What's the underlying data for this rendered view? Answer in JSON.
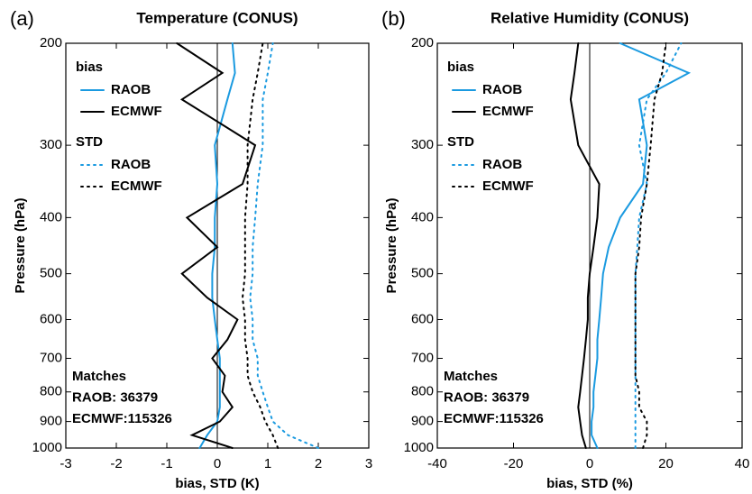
{
  "chart_data": [
    {
      "type": "line",
      "panel_label": "(a)",
      "title": "Temperature (CONUS)",
      "x_label": "bias, STD (K)",
      "y_label": "Pressure (hPa)",
      "xlim": [
        -3,
        3
      ],
      "xticks": [
        -3,
        -2,
        -1,
        0,
        1,
        2,
        3
      ],
      "ylim": [
        1000,
        200
      ],
      "yticks": [
        1000,
        900,
        800,
        700,
        600,
        500,
        400,
        300,
        200
      ],
      "log_y": true,
      "zero_line": 0,
      "y": [
        1000,
        950,
        900,
        850,
        800,
        750,
        700,
        650,
        600,
        550,
        500,
        450,
        400,
        350,
        300,
        250,
        225,
        200
      ],
      "legend_groups": [
        "bias",
        "STD"
      ],
      "series": [
        {
          "name": "RAOB",
          "group": 0,
          "color": "#1a9ae0",
          "dashed": false,
          "values": [
            -0.35,
            -0.2,
            0,
            0.05,
            0.05,
            0.05,
            0.05,
            0,
            -0.05,
            -0.1,
            -0.1,
            -0.05,
            -0.05,
            0,
            -0.05,
            0.2,
            0.35,
            0.3
          ]
        },
        {
          "name": "ECMWF",
          "group": 0,
          "color": "#000000",
          "dashed": false,
          "values": [
            0.3,
            -0.5,
            0.05,
            0.3,
            0.1,
            0.15,
            -0.1,
            0.2,
            0.4,
            -0.2,
            -0.7,
            0,
            -0.6,
            0.5,
            0.75,
            -0.7,
            0.1,
            -0.8
          ]
        },
        {
          "name": "RAOB",
          "group": 1,
          "color": "#1a9ae0",
          "dashed": true,
          "values": [
            2.0,
            1.4,
            1.1,
            1.0,
            0.9,
            0.8,
            0.8,
            0.7,
            0.7,
            0.65,
            0.7,
            0.7,
            0.75,
            0.8,
            0.9,
            0.9,
            1.0,
            1.1
          ]
        },
        {
          "name": "ECMWF",
          "group": 1,
          "color": "#000000",
          "dashed": true,
          "values": [
            1.2,
            1.1,
            0.95,
            0.85,
            0.7,
            0.6,
            0.6,
            0.55,
            0.55,
            0.5,
            0.55,
            0.55,
            0.55,
            0.6,
            0.6,
            0.7,
            0.8,
            0.9
          ]
        }
      ],
      "annotations": [
        "Matches",
        "RAOB: 36379",
        "ECMWF:115326"
      ]
    },
    {
      "type": "line",
      "panel_label": "(b)",
      "title": "Relative Humidity (CONUS)",
      "x_label": "bias, STD (%)",
      "y_label": "Pressure (hPa)",
      "xlim": [
        -40,
        40
      ],
      "xticks": [
        -40,
        -20,
        0,
        20,
        40
      ],
      "ylim": [
        1000,
        200
      ],
      "yticks": [
        1000,
        900,
        800,
        700,
        600,
        500,
        400,
        300,
        200
      ],
      "log_y": true,
      "zero_line": 0,
      "y": [
        1000,
        950,
        900,
        850,
        800,
        750,
        700,
        650,
        600,
        550,
        500,
        450,
        400,
        350,
        300,
        250,
        225,
        200
      ],
      "legend_groups": [
        "bias",
        "STD"
      ],
      "series": [
        {
          "name": "RAOB",
          "group": 0,
          "color": "#1a9ae0",
          "dashed": false,
          "values": [
            2,
            0.5,
            0.5,
            1,
            1,
            1.5,
            2,
            2,
            2.5,
            3,
            3.5,
            5,
            8,
            14,
            15,
            13,
            26,
            8
          ]
        },
        {
          "name": "ECMWF",
          "group": 0,
          "color": "#000000",
          "dashed": false,
          "values": [
            -1,
            -2,
            -2.5,
            -3,
            -2.5,
            -2,
            -1.5,
            -1,
            -0.5,
            -0.5,
            0,
            1,
            2,
            2.5,
            -3,
            -5,
            -4,
            -3
          ]
        },
        {
          "name": "RAOB",
          "group": 1,
          "color": "#1a9ae0",
          "dashed": true,
          "values": [
            12,
            12,
            12,
            12,
            12,
            12,
            12,
            12,
            12,
            12,
            12,
            12.5,
            13,
            15,
            13,
            15,
            20,
            24
          ]
        },
        {
          "name": "ECMWF",
          "group": 1,
          "color": "#000000",
          "dashed": true,
          "values": [
            14,
            15,
            15,
            13,
            13,
            12,
            12,
            12,
            12,
            12,
            12,
            13,
            13.5,
            15,
            16,
            17,
            19,
            20
          ]
        }
      ],
      "annotations": [
        "Matches",
        "RAOB: 36379",
        "ECMWF:115326"
      ]
    }
  ]
}
